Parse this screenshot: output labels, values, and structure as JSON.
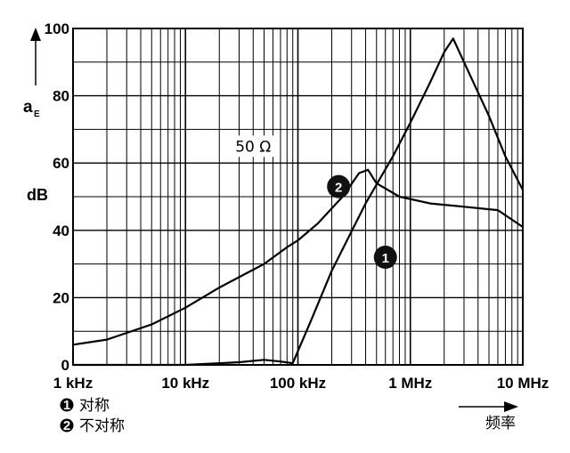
{
  "chart_data": {
    "type": "line",
    "y_label_main": "a",
    "y_label_sub": "E",
    "y_unit": "dB",
    "x_label": "频率",
    "x_scale": "log",
    "xlim": [
      1000,
      10000000
    ],
    "ylim": [
      0,
      100
    ],
    "grid": true,
    "x_ticks": [
      {
        "value": 1000,
        "label": "1 kHz"
      },
      {
        "value": 10000,
        "label": "10 kHz"
      },
      {
        "value": 100000,
        "label": "100 kHz"
      },
      {
        "value": 1000000,
        "label": "1 MHz"
      },
      {
        "value": 10000000,
        "label": "10 MHz"
      }
    ],
    "y_ticks": [
      {
        "value": 0,
        "label": "0"
      },
      {
        "value": 20,
        "label": "20"
      },
      {
        "value": 40,
        "label": "40"
      },
      {
        "value": 60,
        "label": "60"
      },
      {
        "value": 80,
        "label": "80"
      },
      {
        "value": 100,
        "label": "100"
      }
    ],
    "annotation": {
      "text": "50 Ω",
      "x": 40000,
      "y": 65
    },
    "series": [
      {
        "name": "对称",
        "marker": "1",
        "marker_at": {
          "x": 600000,
          "y": 32
        },
        "points": [
          [
            1000,
            0
          ],
          [
            10000,
            0
          ],
          [
            30000,
            0.8
          ],
          [
            50000,
            1.5
          ],
          [
            70000,
            1
          ],
          [
            90000,
            0.5
          ],
          [
            130000,
            13
          ],
          [
            200000,
            28
          ],
          [
            400000,
            48
          ],
          [
            700000,
            62
          ],
          [
            1000000,
            72
          ],
          [
            1500000,
            84
          ],
          [
            2000000,
            93
          ],
          [
            2400000,
            97
          ],
          [
            3000000,
            90
          ],
          [
            5000000,
            74
          ],
          [
            7000000,
            62
          ],
          [
            10000000,
            52
          ]
        ]
      },
      {
        "name": "不对称",
        "marker": "2",
        "marker_at": {
          "x": 230000,
          "y": 53
        },
        "points": [
          [
            1000,
            6
          ],
          [
            2000,
            7.5
          ],
          [
            5000,
            12
          ],
          [
            10000,
            17
          ],
          [
            20000,
            23
          ],
          [
            50000,
            30
          ],
          [
            80000,
            35
          ],
          [
            100000,
            37
          ],
          [
            150000,
            42
          ],
          [
            250000,
            50
          ],
          [
            350000,
            57
          ],
          [
            420000,
            58
          ],
          [
            500000,
            54
          ],
          [
            800000,
            50
          ],
          [
            1500000,
            48
          ],
          [
            3000000,
            47
          ],
          [
            6000000,
            46
          ],
          [
            10000000,
            41
          ]
        ]
      }
    ]
  },
  "legend": {
    "items": [
      {
        "num": "1",
        "label": "对称"
      },
      {
        "num": "2",
        "label": "不对称"
      }
    ]
  }
}
